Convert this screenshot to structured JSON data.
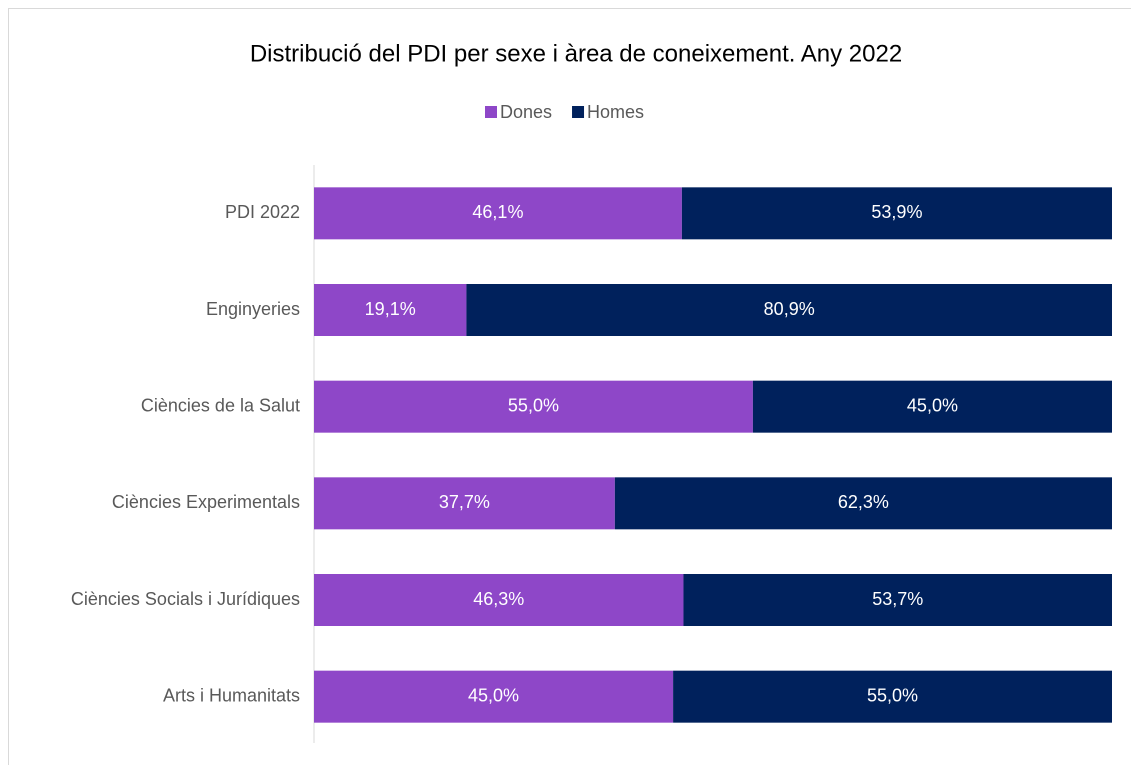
{
  "chart_data": {
    "type": "stacked_barh",
    "title": "Distribució del PDI per sexe i àrea de coneixement. Any 2022",
    "categories": [
      "PDI 2022",
      "Enginyeries",
      "Ciències de la Salut",
      "Ciències Experimentals",
      "Ciències Socials i Jurídiques",
      "Arts i Humanitats"
    ],
    "series": [
      {
        "name": "Dones",
        "color": "#8e47c8",
        "values": [
          46.1,
          19.1,
          55.0,
          37.7,
          46.3,
          45.0
        ],
        "value_labels": [
          "46,1%",
          "19,1%",
          "55,0%",
          "37,7%",
          "46,3%",
          "45,0%"
        ]
      },
      {
        "name": "Homes",
        "color": "#00215c",
        "values": [
          53.9,
          80.9,
          45.0,
          62.3,
          53.7,
          55.0
        ],
        "value_labels": [
          "53,9%",
          "80,9%",
          "45,0%",
          "62,3%",
          "53,7%",
          "55,0%"
        ]
      }
    ],
    "xlim": [
      0,
      100
    ],
    "legend": "top"
  }
}
